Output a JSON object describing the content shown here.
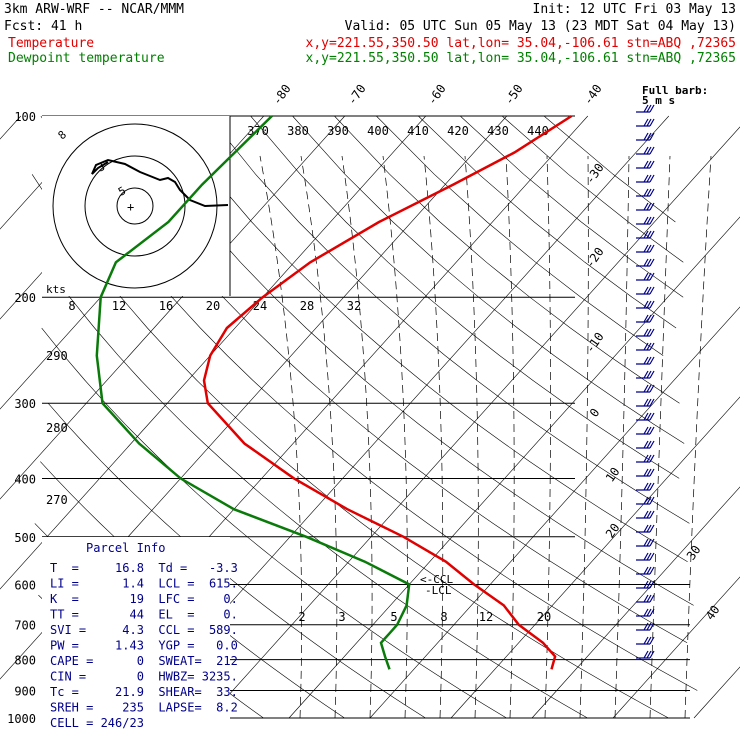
{
  "header": {
    "line1_left": "3km ARW-WRF -- NCAR/MMM",
    "line1_right": "Init: 12 UTC Fri 03 May 13",
    "line2_left": "Fcst:   41 h",
    "line2_right": "Valid: 05 UTC Sun 05 May 13 (23 MDT Sat 04 May 13)",
    "temp_label": "Temperature",
    "temp_info": "x,y=221.55,350.50   lat,lon= 35.04,-106.61   stn=ABQ ,72365",
    "dew_label": "Dewpoint temperature",
    "dew_info": "x,y=221.55,350.50   lat,lon= 35.04,-106.61   stn=ABQ ,72365",
    "barb_key_line1": "Full barb:",
    "barb_key_line2": "5 m s"
  },
  "chart_data": {
    "type": "skew-t",
    "pressure_ticks": [
      "100",
      "200",
      "300",
      "400",
      "500",
      "600",
      "700",
      "800",
      "900",
      "1000"
    ],
    "pressure_levels": [
      100,
      200,
      300,
      400,
      500,
      600,
      700,
      800,
      900,
      1000
    ],
    "isotherm_labels": [
      "-80",
      "-70",
      "-60",
      "-50",
      "-40",
      "-30",
      "-20",
      "-10",
      "0",
      "10",
      "20",
      "30",
      "40"
    ],
    "theta_labels": [
      "370",
      "380",
      "390",
      "400",
      "410",
      "420",
      "430",
      "440"
    ],
    "theta_labels_lower": [
      "290",
      "280",
      "270"
    ],
    "mixing_ratio_labels": [
      "2",
      "3",
      "5",
      "8",
      "12",
      "20"
    ],
    "hodograph": {
      "units_label": "kts",
      "x_ticks": [
        "8",
        "12",
        "16",
        "20",
        "24",
        "28",
        "32"
      ],
      "ring_labels": [
        "3",
        "5"
      ],
      "axis_label": "8"
    },
    "temperature_profile": {
      "p": [
        100,
        115,
        130,
        150,
        175,
        200,
        225,
        250,
        275,
        300,
        350,
        400,
        450,
        500,
        550,
        600,
        650,
        700,
        750,
        790,
        830
      ],
      "t": [
        -42,
        -45,
        -49,
        -54,
        -58,
        -60,
        -61,
        -60,
        -58,
        -55,
        -46,
        -36,
        -26,
        -16,
        -8,
        -2,
        4,
        8,
        13,
        16,
        17
      ]
    },
    "dewpoint_profile": {
      "p": [
        100,
        130,
        150,
        175,
        200,
        250,
        300,
        350,
        400,
        450,
        500,
        550,
        600,
        650,
        700,
        725,
        750,
        790,
        830
      ],
      "t": [
        -79,
        -80,
        -80,
        -82,
        -80,
        -74,
        -68,
        -59,
        -50,
        -40,
        -28,
        -18,
        -10,
        -8,
        -7,
        -7,
        -7,
        -5,
        -3
      ]
    },
    "wind_barbs_right": 40,
    "lcl_labels": [
      "CCL",
      "LCL"
    ]
  },
  "parcel_info": {
    "title": "Parcel Info",
    "rows": [
      "T  =     16.8  Td =   -3.3",
      "LI =      1.4  LCL =  615.",
      "K  =       19  LFC =    0.",
      "TT =       44  EL  =    0.",
      "SVI =     4.3  CCL =  589.",
      "PW =     1.43  YGP =   0.0",
      "CAPE =      0  SWEAT=  212",
      "CIN =       0  HWBZ= 3235.",
      "Tc =     21.9  SHEAR=  33.",
      "SREH =    235  LAPSE=  8.2",
      "CELL = 246/23"
    ]
  }
}
